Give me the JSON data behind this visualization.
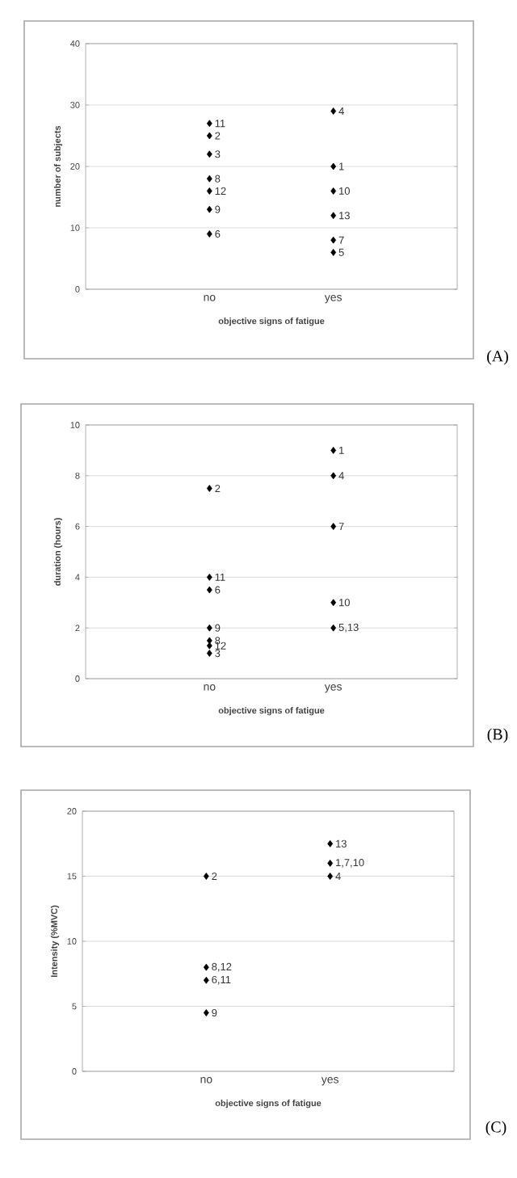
{
  "chart_data": [
    {
      "type": "scatter",
      "ylabel": "number of subjects",
      "xlabel": "objective signs of fatigue",
      "categories": [
        "no",
        "yes"
      ],
      "ylim": [
        0,
        40
      ],
      "yticks": [
        0,
        10,
        20,
        30,
        40
      ],
      "grid": "y",
      "marker": "diamond",
      "series": [
        {
          "color": "#000000",
          "x": [
            "no",
            "no",
            "no",
            "no",
            "no",
            "no",
            "no",
            "yes",
            "yes",
            "yes",
            "yes",
            "yes",
            "yes"
          ],
          "values": [
            27,
            25,
            22,
            18,
            16,
            13,
            9,
            29,
            20,
            16,
            12,
            8,
            6
          ]
        }
      ],
      "annotations": [
        {
          "text": "11",
          "x": "no",
          "y": 27
        },
        {
          "text": "2",
          "x": "no",
          "y": 25
        },
        {
          "text": "3",
          "x": "no",
          "y": 22
        },
        {
          "text": "8",
          "x": "no",
          "y": 18
        },
        {
          "text": "12",
          "x": "no",
          "y": 16
        },
        {
          "text": "9",
          "x": "no",
          "y": 13
        },
        {
          "text": "6",
          "x": "no",
          "y": 9
        },
        {
          "text": "4",
          "x": "yes",
          "y": 29
        },
        {
          "text": "1",
          "x": "yes",
          "y": 20
        },
        {
          "text": "10",
          "x": "yes",
          "y": 16
        },
        {
          "text": "13",
          "x": "yes",
          "y": 12
        },
        {
          "text": "7",
          "x": "yes",
          "y": 8
        },
        {
          "text": "5",
          "x": "yes",
          "y": 6
        },
        "(A)"
      ]
    },
    {
      "type": "scatter",
      "ylabel": "duration (hours)",
      "xlabel": "objective signs of fatigue",
      "categories": [
        "no",
        "yes"
      ],
      "ylim": [
        0,
        10
      ],
      "yticks": [
        0,
        2,
        4,
        6,
        8,
        10
      ],
      "grid": "y",
      "marker": "diamond",
      "series": [
        {
          "color": "#000000",
          "x": [
            "no",
            "no",
            "no",
            "no",
            "no",
            "no",
            "no",
            "yes",
            "yes",
            "yes",
            "yes",
            "yes"
          ],
          "values": [
            7.5,
            4,
            3.5,
            2,
            1.5,
            1.3,
            1,
            9,
            8,
            6,
            3,
            2
          ]
        }
      ],
      "annotations": [
        {
          "text": "2",
          "x": "no",
          "y": 7.5
        },
        {
          "text": "11",
          "x": "no",
          "y": 4
        },
        {
          "text": "6",
          "x": "no",
          "y": 3.5
        },
        {
          "text": "9",
          "x": "no",
          "y": 2
        },
        {
          "text": "8",
          "x": "no",
          "y": 1.5
        },
        {
          "text": "12",
          "x": "no",
          "y": 1.3
        },
        {
          "text": "3",
          "x": "no",
          "y": 1
        },
        {
          "text": "1",
          "x": "yes",
          "y": 9
        },
        {
          "text": "4",
          "x": "yes",
          "y": 8
        },
        {
          "text": "7",
          "x": "yes",
          "y": 6
        },
        {
          "text": "10",
          "x": "yes",
          "y": 3
        },
        {
          "text": "5,13",
          "x": "yes",
          "y": 2
        },
        "(B)"
      ]
    },
    {
      "type": "scatter",
      "ylabel": "Intensity (%MVC)",
      "xlabel": "objective signs of fatigue",
      "categories": [
        "no",
        "yes"
      ],
      "ylim": [
        0,
        20
      ],
      "yticks": [
        0,
        5,
        10,
        15,
        20
      ],
      "grid": "y",
      "marker": "diamond",
      "series": [
        {
          "color": "#000000",
          "x": [
            "no",
            "no",
            "no",
            "no",
            "yes",
            "yes",
            "yes"
          ],
          "values": [
            15,
            8,
            7,
            4.5,
            17.5,
            16,
            15
          ]
        }
      ],
      "annotations": [
        {
          "text": "2",
          "x": "no",
          "y": 15
        },
        {
          "text": "8,12",
          "x": "no",
          "y": 8
        },
        {
          "text": "6,11",
          "x": "no",
          "y": 7
        },
        {
          "text": "9",
          "x": "no",
          "y": 4.5
        },
        {
          "text": "13",
          "x": "yes",
          "y": 17.5
        },
        {
          "text": "1,7,10",
          "x": "yes",
          "y": 16
        },
        {
          "text": "4",
          "x": "yes",
          "y": 15
        },
        "(C)"
      ]
    }
  ]
}
